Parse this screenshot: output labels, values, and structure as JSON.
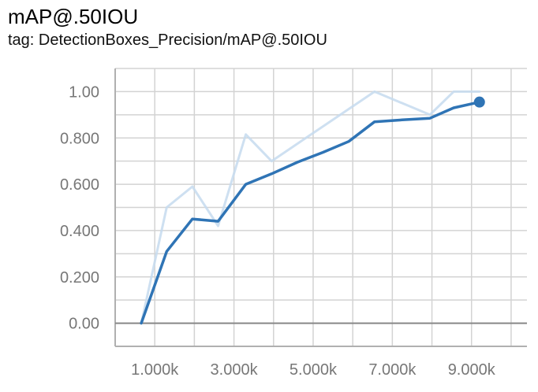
{
  "header": {
    "title": "mAP@.50IOU",
    "subtitle": "tag: DetectionBoxes_Precision/mAP@.50IOU"
  },
  "chart_data": {
    "type": "line",
    "title": "mAP@.50IOU",
    "xlim": [
      0,
      10400
    ],
    "ylim": [
      -0.1,
      1.1
    ],
    "grid": true,
    "x_ticks": [
      1000,
      3000,
      5000,
      7000,
      9000
    ],
    "x_tick_labels": [
      "1.000k",
      "3.000k",
      "5.000k",
      "7.000k",
      "9.000k"
    ],
    "y_ticks": [
      0,
      0.2,
      0.4,
      0.6,
      0.8,
      1.0
    ],
    "y_tick_labels": [
      "0.00",
      "0.200",
      "0.400",
      "0.600",
      "0.800",
      "1.00"
    ],
    "series": [
      {
        "role": "raw",
        "color": "#c6dbef",
        "x": [
          660,
          1300,
          1950,
          2600,
          3300,
          3950,
          6550,
          7950,
          8550,
          9200
        ],
        "y": [
          0.0,
          0.5,
          0.59,
          0.42,
          0.815,
          0.7,
          1.0,
          0.9,
          1.0,
          1.0
        ]
      },
      {
        "role": "smoothed",
        "color": "#2f74b5",
        "x": [
          660,
          1300,
          1950,
          2600,
          3300,
          3950,
          4600,
          5250,
          5900,
          6550,
          7250,
          7950,
          8550,
          9200
        ],
        "y": [
          0.0,
          0.31,
          0.45,
          0.44,
          0.6,
          0.645,
          0.695,
          0.738,
          0.785,
          0.87,
          0.878,
          0.885,
          0.93,
          0.955
        ]
      }
    ],
    "last_point_marker": true
  }
}
